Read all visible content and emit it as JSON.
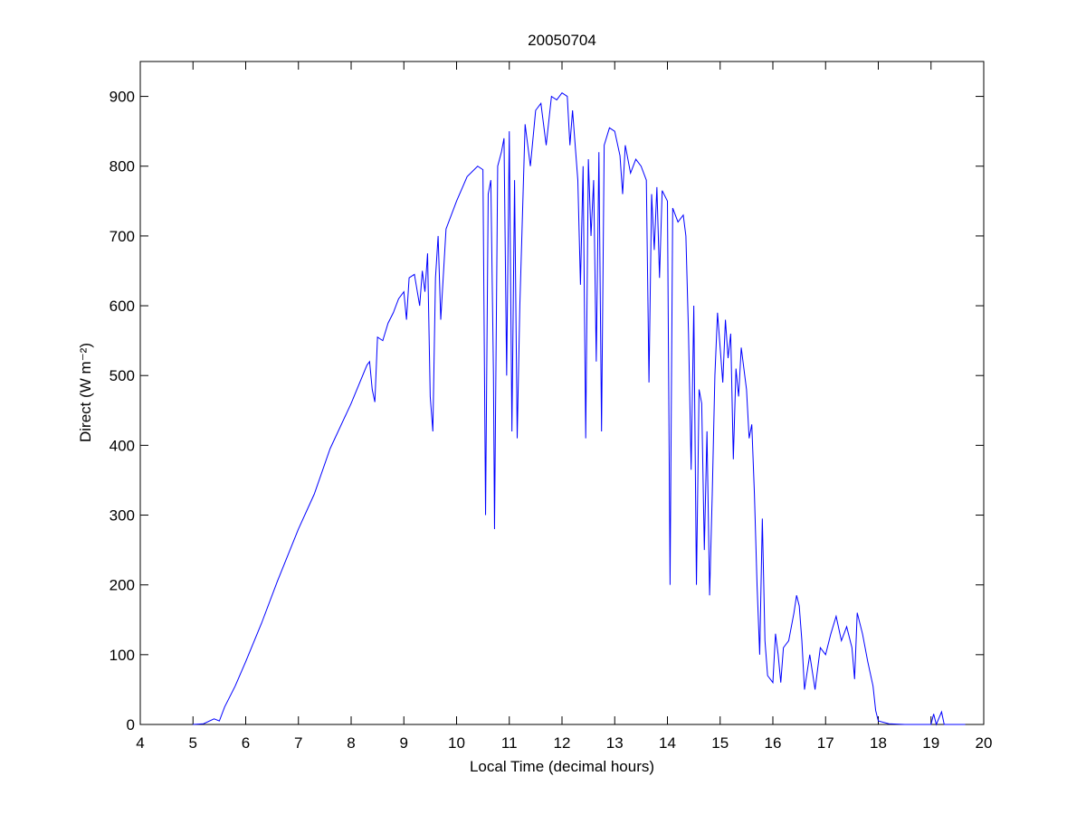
{
  "chart_data": {
    "type": "line",
    "title": "20050704",
    "x_label": "Local Time (decimal hours)",
    "y_label": "Direct (W m⁻²)",
    "xlim": [
      4,
      20
    ],
    "xticks": [
      4,
      5,
      6,
      7,
      8,
      9,
      10,
      11,
      12,
      13,
      14,
      15,
      16,
      17,
      18,
      19,
      20
    ],
    "ylim": [
      0,
      950
    ],
    "yticks": [
      0,
      100,
      200,
      300,
      400,
      500,
      600,
      700,
      800,
      900
    ],
    "grid": false,
    "series": [
      {
        "color": "#0000ff",
        "x": [
          5.0,
          5.2,
          5.4,
          5.5,
          5.6,
          5.8,
          6.0,
          6.3,
          6.6,
          7.0,
          7.3,
          7.6,
          8.0,
          8.3,
          8.35,
          8.4,
          8.45,
          8.5,
          8.6,
          8.7,
          8.8,
          8.9,
          9.0,
          9.05,
          9.1,
          9.2,
          9.3,
          9.35,
          9.4,
          9.45,
          9.5,
          9.55,
          9.6,
          9.65,
          9.7,
          9.8,
          10.0,
          10.2,
          10.4,
          10.5,
          10.55,
          10.6,
          10.65,
          10.7,
          10.72,
          10.78,
          10.85,
          10.9,
          10.95,
          11.0,
          11.05,
          11.1,
          11.15,
          11.2,
          11.3,
          11.4,
          11.5,
          11.6,
          11.7,
          11.8,
          11.9,
          12.0,
          12.1,
          12.15,
          12.2,
          12.3,
          12.35,
          12.4,
          12.45,
          12.5,
          12.55,
          12.6,
          12.65,
          12.7,
          12.75,
          12.8,
          12.9,
          13.0,
          13.1,
          13.15,
          13.2,
          13.3,
          13.4,
          13.5,
          13.6,
          13.65,
          13.7,
          13.75,
          13.8,
          13.85,
          13.9,
          14.0,
          14.05,
          14.1,
          14.2,
          14.3,
          14.35,
          14.4,
          14.45,
          14.5,
          14.55,
          14.6,
          14.65,
          14.7,
          14.75,
          14.8,
          14.85,
          14.9,
          14.95,
          15.0,
          15.05,
          15.1,
          15.15,
          15.2,
          15.25,
          15.3,
          15.35,
          15.4,
          15.5,
          15.55,
          15.6,
          15.65,
          15.7,
          15.75,
          15.8,
          15.85,
          15.9,
          16.0,
          16.05,
          16.1,
          16.15,
          16.2,
          16.3,
          16.4,
          16.45,
          16.5,
          16.55,
          16.6,
          16.7,
          16.8,
          16.9,
          17.0,
          17.1,
          17.2,
          17.3,
          17.4,
          17.5,
          17.55,
          17.6,
          17.7,
          17.8,
          17.9,
          17.95,
          18.0,
          18.2,
          18.5,
          19.0,
          19.05,
          19.1,
          19.2,
          19.25,
          19.65
        ],
        "values": [
          0,
          1,
          8,
          5,
          25,
          55,
          90,
          145,
          205,
          280,
          330,
          395,
          460,
          515,
          520,
          480,
          462,
          555,
          550,
          575,
          590,
          610,
          620,
          580,
          640,
          645,
          600,
          650,
          620,
          675,
          470,
          420,
          640,
          700,
          580,
          710,
          750,
          785,
          800,
          795,
          300,
          760,
          780,
          500,
          280,
          800,
          820,
          840,
          500,
          850,
          420,
          780,
          410,
          600,
          860,
          800,
          880,
          890,
          830,
          900,
          895,
          905,
          900,
          830,
          880,
          780,
          630,
          800,
          410,
          810,
          700,
          780,
          520,
          820,
          420,
          830,
          855,
          850,
          815,
          760,
          830,
          790,
          810,
          800,
          780,
          490,
          760,
          680,
          770,
          640,
          765,
          750,
          200,
          740,
          720,
          730,
          700,
          560,
          365,
          600,
          200,
          480,
          460,
          250,
          420,
          185,
          330,
          500,
          590,
          540,
          490,
          580,
          525,
          560,
          380,
          510,
          470,
          540,
          480,
          410,
          430,
          330,
          200,
          100,
          295,
          120,
          70,
          60,
          130,
          100,
          60,
          110,
          120,
          160,
          185,
          170,
          120,
          50,
          100,
          50,
          110,
          100,
          130,
          155,
          120,
          140,
          110,
          65,
          160,
          130,
          90,
          55,
          20,
          5,
          1,
          0,
          0,
          15,
          0,
          18,
          0,
          0
        ]
      }
    ]
  }
}
